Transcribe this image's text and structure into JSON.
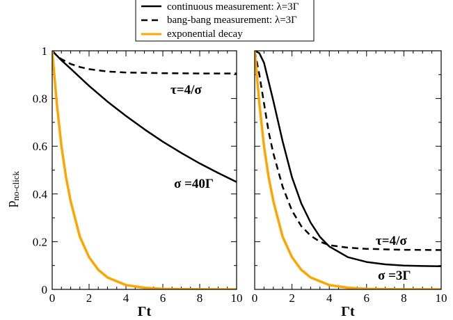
{
  "colors": {
    "solid": "#000000",
    "dashed": "#000000",
    "decay": "#ffa500"
  },
  "legend": {
    "placement": "top-center",
    "entries": [
      {
        "label": "continuous measurement: λ=3Γ",
        "style": "solid",
        "color": "#000000"
      },
      {
        "label": "bang-bang measurement: λ=3Γ",
        "style": "dashed",
        "color": "#000000"
      },
      {
        "label": "exponential decay",
        "style": "solid",
        "color": "#ffa500"
      }
    ]
  },
  "ylabel_main": "p",
  "ylabel_sub": "no-click",
  "chart_data": [
    {
      "type": "line",
      "xlabel": "Γt",
      "xlim": [
        0,
        10
      ],
      "ylim": [
        0,
        1
      ],
      "xticks": [
        "0",
        "2",
        "4",
        "6",
        "8",
        "10"
      ],
      "yticks": [
        "0",
        "0.2",
        "0.4",
        "0.6",
        "0.8",
        "1"
      ],
      "annotations": [
        "τ=4/σ",
        "σ =40Γ"
      ],
      "series": [
        {
          "key": "continuous",
          "style": "solid",
          "color": "#000000",
          "x": [
            0,
            0.5,
            1,
            2,
            3,
            4,
            5,
            6,
            7,
            8,
            9,
            10
          ],
          "y": [
            1.0,
            0.96,
            0.925,
            0.853,
            0.787,
            0.727,
            0.671,
            0.619,
            0.572,
            0.528,
            0.488,
            0.45
          ]
        },
        {
          "key": "bangbang",
          "style": "dashed",
          "color": "#000000",
          "x": [
            0,
            0.25,
            0.5,
            1,
            1.5,
            2,
            3,
            4,
            6,
            8,
            10
          ],
          "y": [
            1.0,
            0.98,
            0.965,
            0.945,
            0.932,
            0.923,
            0.913,
            0.909,
            0.906,
            0.905,
            0.905
          ]
        },
        {
          "key": "decay",
          "style": "solid",
          "color": "#ffa500",
          "x": [
            0,
            0.25,
            0.5,
            0.75,
            1,
            1.5,
            2,
            2.5,
            3,
            4,
            5,
            6,
            8,
            10
          ],
          "y": [
            1.0,
            0.78,
            0.6,
            0.47,
            0.37,
            0.22,
            0.135,
            0.082,
            0.05,
            0.018,
            0.007,
            0.002,
            0.0003,
            0.0
          ]
        }
      ]
    },
    {
      "type": "line",
      "xlabel": "Γt",
      "xlim": [
        0,
        10
      ],
      "ylim": [
        0,
        1
      ],
      "xticks": [
        "0",
        "2",
        "4",
        "6",
        "8",
        "10"
      ],
      "yticks": [
        "0",
        "0.2",
        "0.4",
        "0.6",
        "0.8",
        "1"
      ],
      "annotations": [
        "τ=4/σ",
        "σ =3Γ"
      ],
      "series": [
        {
          "key": "continuous",
          "style": "solid",
          "color": "#000000",
          "x": [
            0,
            0.25,
            0.5,
            0.75,
            1,
            1.5,
            2,
            2.5,
            3,
            3.5,
            4,
            5,
            6,
            7,
            8,
            9,
            10
          ],
          "y": [
            1.0,
            0.99,
            0.95,
            0.87,
            0.79,
            0.62,
            0.47,
            0.36,
            0.28,
            0.22,
            0.18,
            0.135,
            0.115,
            0.105,
            0.1,
            0.098,
            0.097
          ]
        },
        {
          "key": "bangbang",
          "style": "dashed",
          "color": "#000000",
          "x": [
            0,
            0.25,
            0.5,
            0.75,
            1,
            1.5,
            2,
            2.5,
            3,
            3.5,
            4,
            5,
            6,
            8,
            10
          ],
          "y": [
            1.0,
            0.9,
            0.78,
            0.66,
            0.57,
            0.43,
            0.33,
            0.265,
            0.225,
            0.2,
            0.185,
            0.175,
            0.17,
            0.166,
            0.165
          ]
        },
        {
          "key": "decay",
          "style": "solid",
          "color": "#ffa500",
          "x": [
            0,
            0.25,
            0.5,
            0.75,
            1,
            1.5,
            2,
            2.5,
            3,
            4,
            5,
            6,
            8,
            10
          ],
          "y": [
            1.0,
            0.78,
            0.6,
            0.47,
            0.37,
            0.22,
            0.135,
            0.082,
            0.05,
            0.018,
            0.007,
            0.002,
            0.0003,
            0.0
          ]
        }
      ]
    }
  ]
}
